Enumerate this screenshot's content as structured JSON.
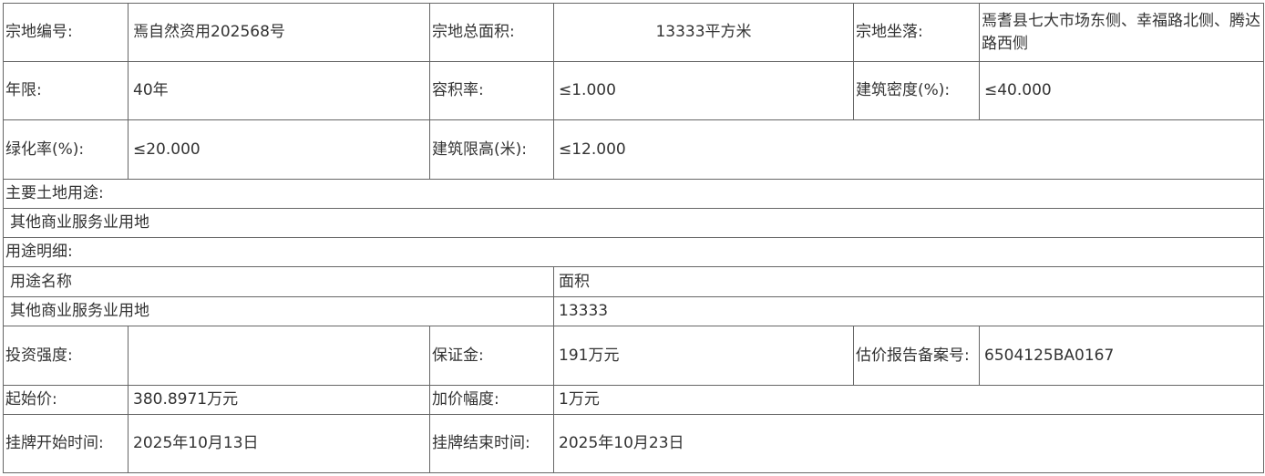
{
  "parcel": {
    "id_label": "宗地编号:",
    "id_value": "焉自然资用202568号",
    "area_label": "宗地总面积:",
    "area_value": "13333平方米",
    "location_label": "宗地坐落:",
    "location_value": "焉耆县七大市场东侧、幸福路北侧、腾达路西侧",
    "term_label": "年限:",
    "term_value": "40年",
    "far_label": "容积率:",
    "far_value": "≤1.000",
    "density_label": "建筑密度(%):",
    "density_value": "≤40.000",
    "green_label": "绿化率(%):",
    "green_value": "≤20.000",
    "height_label": "建筑限高(米):",
    "height_value": "≤12.000",
    "main_use_label": "主要土地用途:",
    "main_use_value": "其他商业服务业用地",
    "use_detail_label": "用途明细:",
    "use_detail_headers": [
      "用途名称",
      "面积"
    ],
    "use_detail_rows": [
      [
        "其他商业服务业用地",
        "13333"
      ]
    ],
    "investment_label": "投资强度:",
    "investment_value": "",
    "deposit_label": "保证金:",
    "deposit_value": "191万元",
    "appraisal_label": "估价报告备案号:",
    "appraisal_value": "6504125BA0167",
    "start_price_label": "起始价:",
    "start_price_value": "380.8971万元",
    "increment_label": "加价幅度:",
    "increment_value": "1万元",
    "listing_start_label": "挂牌开始时间:",
    "listing_start_value": "2025年10月13日",
    "listing_end_label": "挂牌结束时间:",
    "listing_end_value": "2025年10月23日"
  }
}
